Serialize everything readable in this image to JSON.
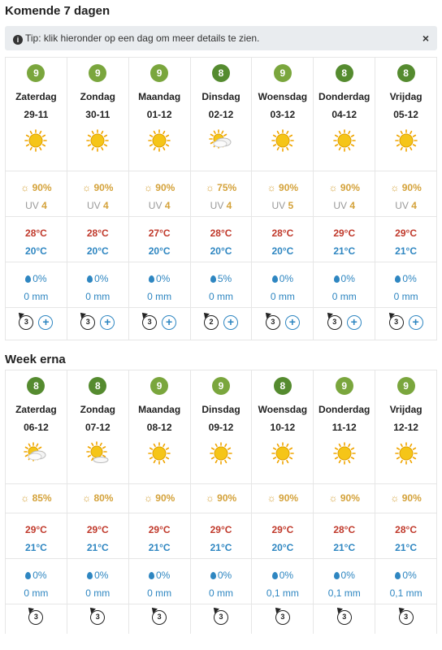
{
  "section1": {
    "title": "Komende 7 dagen",
    "tip": "Tip: klik hieronder op een dag om meer details te zien.",
    "tip_close": "×",
    "days": [
      {
        "score": "9",
        "name": "Zaterdag",
        "date": "29-11",
        "icon": "sun-icon",
        "sun": "90%",
        "uv": "4",
        "tmax": "28°C",
        "tmin": "20°C",
        "rain": "0%",
        "mm": "0 mm",
        "wind": "3"
      },
      {
        "score": "9",
        "name": "Zondag",
        "date": "30-11",
        "icon": "sun-icon",
        "sun": "90%",
        "uv": "4",
        "tmax": "28°C",
        "tmin": "20°C",
        "rain": "0%",
        "mm": "0 mm",
        "wind": "3"
      },
      {
        "score": "9",
        "name": "Maandag",
        "date": "01-12",
        "icon": "sun-icon",
        "sun": "90%",
        "uv": "4",
        "tmax": "27°C",
        "tmin": "20°C",
        "rain": "0%",
        "mm": "0 mm",
        "wind": "3"
      },
      {
        "score": "8",
        "name": "Dinsdag",
        "date": "02-12",
        "icon": "partly-cloudy-icon",
        "sun": "75%",
        "uv": "4",
        "tmax": "28°C",
        "tmin": "20°C",
        "rain": "5%",
        "mm": "0 mm",
        "wind": "2"
      },
      {
        "score": "9",
        "name": "Woensdag",
        "date": "03-12",
        "icon": "sun-icon",
        "sun": "90%",
        "uv": "5",
        "tmax": "28°C",
        "tmin": "20°C",
        "rain": "0%",
        "mm": "0 mm",
        "wind": "3"
      },
      {
        "score": "8",
        "name": "Donderdag",
        "date": "04-12",
        "icon": "sun-icon",
        "sun": "90%",
        "uv": "4",
        "tmax": "29°C",
        "tmin": "21°C",
        "rain": "0%",
        "mm": "0 mm",
        "wind": "3"
      },
      {
        "score": "8",
        "name": "Vrijdag",
        "date": "05-12",
        "icon": "sun-icon",
        "sun": "90%",
        "uv": "4",
        "tmax": "29°C",
        "tmin": "21°C",
        "rain": "0%",
        "mm": "0 mm",
        "wind": "3"
      }
    ]
  },
  "section2": {
    "title": "Week erna",
    "days": [
      {
        "score": "8",
        "name": "Zaterdag",
        "date": "06-12",
        "icon": "partly-cloudy-icon",
        "sun": "85%",
        "tmax": "29°C",
        "tmin": "21°C",
        "rain": "0%",
        "mm": "0 mm",
        "wind": "3"
      },
      {
        "score": "8",
        "name": "Zondag",
        "date": "07-12",
        "icon": "sun-cloud-icon",
        "sun": "80%",
        "tmax": "29°C",
        "tmin": "21°C",
        "rain": "0%",
        "mm": "0 mm",
        "wind": "3"
      },
      {
        "score": "9",
        "name": "Maandag",
        "date": "08-12",
        "icon": "sun-icon",
        "sun": "90%",
        "tmax": "29°C",
        "tmin": "21°C",
        "rain": "0%",
        "mm": "0 mm",
        "wind": "3"
      },
      {
        "score": "9",
        "name": "Dinsdag",
        "date": "09-12",
        "icon": "sun-icon",
        "sun": "90%",
        "tmax": "29°C",
        "tmin": "21°C",
        "rain": "0%",
        "mm": "0 mm",
        "wind": "3"
      },
      {
        "score": "8",
        "name": "Woensdag",
        "date": "10-12",
        "icon": "sun-icon",
        "sun": "90%",
        "tmax": "29°C",
        "tmin": "20°C",
        "rain": "0%",
        "mm": "0,1 mm",
        "wind": "3"
      },
      {
        "score": "9",
        "name": "Donderdag",
        "date": "11-12",
        "icon": "sun-icon",
        "sun": "90%",
        "tmax": "28°C",
        "tmin": "21°C",
        "rain": "0%",
        "mm": "0,1 mm",
        "wind": "3"
      },
      {
        "score": "9",
        "name": "Vrijdag",
        "date": "12-12",
        "icon": "sun-icon",
        "sun": "90%",
        "tmax": "28°C",
        "tmin": "21°C",
        "rain": "0%",
        "mm": "0,1 mm",
        "wind": "3"
      }
    ]
  },
  "labels": {
    "uv": "UV",
    "sun_glyph": "☼",
    "plus": "+"
  },
  "colors": {
    "score_9": "#7aa63d",
    "score_8": "#558b2f",
    "temp_max": "#c0392b",
    "temp_min": "#2e86c1",
    "sun": "#d4a23a",
    "accent": "#2e86c1"
  }
}
